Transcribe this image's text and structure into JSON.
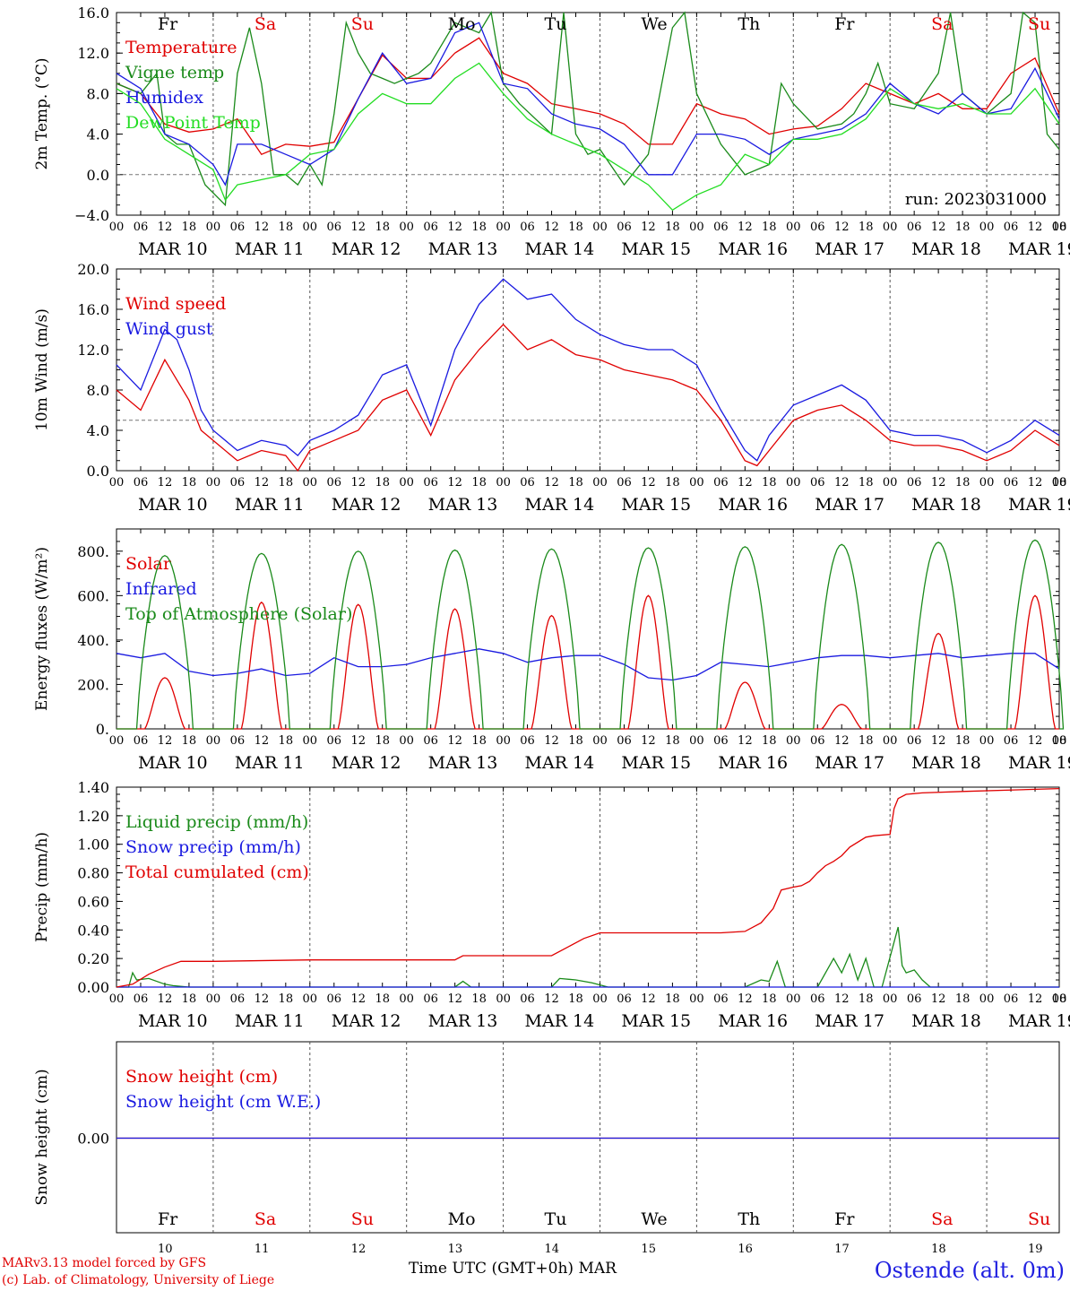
{
  "chart_data": [
    {
      "type": "line",
      "ylabel": "2m Temp. (°C)",
      "ylim": [
        -4,
        16
      ],
      "yticks": [
        "−4.0",
        "0.0",
        "4.0",
        "8.0",
        "12.0",
        "16.0"
      ],
      "reference_line": 0,
      "run_label": "run: 2023031000",
      "series": [
        {
          "name": "Temperature",
          "color": "#e00000",
          "x": [
            0,
            6,
            12,
            18,
            24,
            30,
            36,
            42,
            48,
            54,
            60,
            66,
            72,
            78,
            84,
            90,
            96,
            102,
            108,
            114,
            120,
            126,
            132,
            138,
            144,
            150,
            156,
            162,
            168,
            174,
            180,
            186,
            192,
            198,
            204,
            210,
            216,
            222,
            228,
            234
          ],
          "y": [
            9.0,
            8.0,
            5.0,
            4.2,
            4.5,
            5.5,
            2.0,
            3.0,
            2.8,
            3.2,
            7.5,
            11.8,
            9.5,
            9.5,
            12.0,
            13.5,
            10.0,
            9.0,
            7.0,
            6.5,
            6.0,
            5.0,
            3.0,
            3.0,
            7.0,
            6.0,
            5.5,
            4.0,
            4.5,
            4.8,
            6.5,
            9.0,
            8.0,
            7.0,
            8.0,
            6.5,
            6.5,
            10.0,
            11.5,
            6.0
          ]
        },
        {
          "name": "Vigne temp",
          "color": "#1a8a1a",
          "x": [
            0,
            6,
            10,
            12,
            15,
            18,
            22,
            27,
            30,
            33,
            36,
            39,
            42,
            45,
            48,
            51,
            54,
            57,
            60,
            63,
            66,
            69,
            72,
            75,
            78,
            84,
            90,
            93,
            96,
            100,
            108,
            111,
            114,
            117,
            120,
            126,
            132,
            138,
            141,
            144,
            150,
            156,
            162,
            165,
            168,
            174,
            180,
            183,
            186,
            189,
            192,
            198,
            204,
            207,
            210,
            216,
            222,
            225,
            228,
            231,
            234
          ],
          "y": [
            9,
            8,
            10,
            4,
            3,
            3,
            -1,
            -3,
            10,
            14.5,
            9,
            0,
            0,
            -1,
            1,
            -1,
            6,
            15,
            12,
            10,
            9.5,
            9,
            9.5,
            10,
            11,
            15,
            14,
            16,
            9,
            7,
            4,
            16,
            4,
            2,
            2.5,
            -1,
            2,
            14.5,
            16,
            8,
            3,
            0,
            1,
            9,
            7,
            4.5,
            5,
            6,
            8,
            11,
            7,
            6.5,
            10,
            16,
            8,
            6,
            8,
            16,
            15,
            4,
            2.5
          ]
        },
        {
          "name": "Humidex",
          "color": "#1a1ae0",
          "x": [
            0,
            6,
            12,
            18,
            24,
            27,
            30,
            36,
            42,
            48,
            54,
            60,
            66,
            72,
            78,
            84,
            90,
            96,
            102,
            108,
            114,
            120,
            126,
            132,
            138,
            144,
            150,
            156,
            162,
            168,
            174,
            180,
            186,
            192,
            198,
            204,
            210,
            216,
            222,
            228,
            234
          ],
          "y": [
            10,
            8.5,
            4,
            3,
            1,
            -1,
            3,
            3,
            2,
            1,
            2.5,
            7.5,
            12,
            9,
            9.5,
            14,
            15,
            9,
            8.5,
            6,
            5,
            4.5,
            3,
            0,
            0,
            4,
            4,
            3.5,
            2,
            3.5,
            4,
            4.5,
            6,
            9,
            7,
            6,
            8,
            6,
            6.5,
            10.5,
            5.5
          ]
        },
        {
          "name": "DewPoint Temp",
          "color": "#22dd22",
          "x": [
            0,
            6,
            12,
            18,
            24,
            27,
            30,
            36,
            42,
            48,
            54,
            60,
            66,
            72,
            78,
            84,
            90,
            96,
            102,
            108,
            114,
            120,
            126,
            132,
            138,
            144,
            150,
            156,
            162,
            168,
            174,
            180,
            186,
            192,
            198,
            204,
            210,
            216,
            222,
            228,
            234
          ],
          "y": [
            8.5,
            7,
            3.5,
            2,
            0.5,
            -2.5,
            -1,
            -0.5,
            0,
            2,
            2.5,
            6,
            8,
            7,
            7,
            9.5,
            11,
            8,
            5.5,
            4,
            3,
            2,
            0.5,
            -1,
            -3.5,
            -2,
            -1,
            2,
            1,
            3.5,
            3.5,
            4,
            5.5,
            8.5,
            7,
            6.5,
            7,
            6,
            6,
            8.5,
            5
          ]
        }
      ]
    },
    {
      "type": "line",
      "ylabel": "10m Wind (m/s)",
      "ylim": [
        0,
        20
      ],
      "yticks": [
        "0.0",
        "4.0",
        "8.0",
        "12.0",
        "16.0",
        "20.0"
      ],
      "reference_line": 5,
      "series": [
        {
          "name": "Wind speed",
          "color": "#e00000",
          "x": [
            0,
            6,
            12,
            15,
            18,
            21,
            24,
            30,
            36,
            42,
            45,
            48,
            54,
            60,
            66,
            72,
            78,
            84,
            90,
            96,
            102,
            108,
            114,
            120,
            126,
            132,
            138,
            144,
            150,
            156,
            159,
            162,
            168,
            174,
            180,
            186,
            192,
            198,
            204,
            210,
            216,
            222,
            228,
            234
          ],
          "y": [
            8,
            6,
            11,
            9,
            7,
            4,
            3,
            1,
            2,
            1.5,
            0,
            2,
            3,
            4,
            7,
            8,
            3.5,
            9,
            12,
            14.5,
            12,
            13,
            11.5,
            11,
            10,
            9.5,
            9,
            8,
            5,
            1,
            0.5,
            2,
            5,
            6,
            6.5,
            5,
            3,
            2.5,
            2.5,
            2,
            1,
            2,
            4,
            2.5
          ]
        },
        {
          "name": "Wind gust",
          "color": "#1a1ae0",
          "x": [
            0,
            6,
            12,
            15,
            18,
            21,
            24,
            30,
            36,
            42,
            45,
            48,
            54,
            60,
            66,
            72,
            78,
            84,
            90,
            96,
            102,
            108,
            114,
            120,
            126,
            132,
            138,
            144,
            150,
            156,
            159,
            162,
            168,
            174,
            180,
            186,
            192,
            198,
            204,
            210,
            216,
            222,
            228,
            234
          ],
          "y": [
            10.5,
            8,
            14,
            13,
            10,
            6,
            4,
            2,
            3,
            2.5,
            1.5,
            3,
            4,
            5.5,
            9.5,
            10.5,
            4.5,
            12,
            16.5,
            19,
            17,
            17.5,
            15,
            13.5,
            12.5,
            12,
            12,
            10.5,
            6,
            2,
            1,
            3.5,
            6.5,
            7.5,
            8.5,
            7,
            4,
            3.5,
            3.5,
            3,
            1.8,
            3,
            5,
            3.5
          ]
        }
      ]
    },
    {
      "type": "line",
      "ylabel": "Energy fluxes (W/m²)",
      "ylim": [
        0,
        900
      ],
      "yticks": [
        "0.",
        "200.",
        "400.",
        "600.",
        "800."
      ],
      "series": [
        {
          "name": "Solar",
          "color": "#e00000",
          "peaks": [
            [
              12,
              230
            ],
            [
              36,
              570
            ],
            [
              60,
              560
            ],
            [
              84,
              540
            ],
            [
              108,
              510
            ],
            [
              132,
              600
            ],
            [
              156,
              210
            ],
            [
              180,
              110
            ],
            [
              204,
              430
            ],
            [
              228,
              600
            ]
          ]
        },
        {
          "name": "Infrared",
          "color": "#1a1ae0",
          "x": [
            0,
            6,
            12,
            18,
            24,
            30,
            36,
            42,
            48,
            54,
            60,
            66,
            72,
            78,
            84,
            90,
            96,
            102,
            108,
            114,
            120,
            126,
            132,
            138,
            144,
            150,
            156,
            162,
            168,
            174,
            180,
            186,
            192,
            198,
            204,
            210,
            216,
            222,
            228,
            234
          ],
          "y": [
            340,
            320,
            340,
            260,
            240,
            250,
            270,
            240,
            250,
            320,
            280,
            280,
            290,
            320,
            340,
            360,
            340,
            300,
            320,
            330,
            330,
            290,
            230,
            220,
            240,
            300,
            290,
            280,
            300,
            320,
            330,
            330,
            320,
            330,
            340,
            320,
            330,
            340,
            340,
            270
          ]
        },
        {
          "name": "Top of Atmosphere (Solar)",
          "color": "#1a8a1a",
          "peaks": [
            [
              12,
              780
            ],
            [
              36,
              790
            ],
            [
              60,
              800
            ],
            [
              84,
              805
            ],
            [
              108,
              810
            ],
            [
              132,
              815
            ],
            [
              156,
              820
            ],
            [
              180,
              830
            ],
            [
              204,
              840
            ],
            [
              228,
              850
            ]
          ]
        }
      ]
    },
    {
      "type": "line",
      "ylabel": "Precip (mm/h)",
      "ylim": [
        0,
        1.4
      ],
      "yticks": [
        "0.00",
        "0.20",
        "0.40",
        "0.60",
        "0.80",
        "1.00",
        "1.20",
        "1.40"
      ],
      "series": [
        {
          "name": "Liquid precip (mm/h)",
          "color": "#1a8a1a",
          "x": [
            0,
            3,
            4,
            5,
            8,
            12,
            14,
            18,
            84,
            86,
            88,
            108,
            110,
            114,
            118,
            122,
            156,
            160,
            162,
            164,
            166,
            174,
            178,
            180,
            182,
            184,
            186,
            188,
            190,
            194,
            195,
            196,
            198,
            200,
            202,
            234
          ],
          "y": [
            0,
            0,
            0.1,
            0.05,
            0.06,
            0.02,
            0.01,
            0,
            0,
            0.04,
            0,
            0,
            0.06,
            0.05,
            0.03,
            0,
            0,
            0.05,
            0.04,
            0.18,
            0,
            0,
            0.2,
            0.1,
            0.23,
            0.05,
            0.2,
            0,
            0,
            0.42,
            0.15,
            0.1,
            0.12,
            0.05,
            0,
            0
          ]
        },
        {
          "name": "Snow precip (mm/h)",
          "color": "#1a1ae0",
          "x": [
            0,
            234
          ],
          "y": [
            0,
            0
          ]
        },
        {
          "name": "Total cumulated (cm)",
          "color": "#e00000",
          "x": [
            0,
            4,
            8,
            12,
            16,
            24,
            48,
            72,
            84,
            86,
            108,
            112,
            116,
            120,
            150,
            156,
            160,
            163,
            165,
            168,
            170,
            172,
            174,
            176,
            178,
            180,
            182,
            186,
            188,
            192,
            193,
            194,
            196,
            200,
            210,
            234
          ],
          "y": [
            0,
            0.02,
            0.09,
            0.14,
            0.18,
            0.18,
            0.19,
            0.19,
            0.19,
            0.22,
            0.22,
            0.28,
            0.34,
            0.38,
            0.38,
            0.39,
            0.45,
            0.55,
            0.68,
            0.7,
            0.71,
            0.74,
            0.8,
            0.85,
            0.88,
            0.92,
            0.98,
            1.05,
            1.06,
            1.07,
            1.25,
            1.32,
            1.35,
            1.36,
            1.37,
            1.39
          ]
        }
      ]
    },
    {
      "type": "line",
      "ylabel": "Snow height (cm)",
      "yticks": [
        "0.00"
      ],
      "series": [
        {
          "name": "Snow height (cm)",
          "color": "#e00000",
          "x": [
            0,
            234
          ],
          "y": [
            0,
            0
          ]
        },
        {
          "name": "Snow height (cm W.E.)",
          "color": "#1a1ae0",
          "x": [
            0,
            234
          ],
          "y": [
            0,
            0
          ]
        }
      ]
    }
  ],
  "axis": {
    "hour_ticks": [
      "00",
      "06",
      "12",
      "18"
    ],
    "end_tick": "00",
    "dates": [
      "MAR 10",
      "MAR 11",
      "MAR 12",
      "MAR 13",
      "MAR 14",
      "MAR 15",
      "MAR 16",
      "MAR 17",
      "MAR 18",
      "MAR 19"
    ],
    "days": [
      {
        "label": "Fr",
        "weekend": false
      },
      {
        "label": "Sa",
        "weekend": true
      },
      {
        "label": "Su",
        "weekend": true
      },
      {
        "label": "Mo",
        "weekend": false
      },
      {
        "label": "Tu",
        "weekend": false
      },
      {
        "label": "We",
        "weekend": false
      },
      {
        "label": "Th",
        "weekend": false
      },
      {
        "label": "Fr",
        "weekend": false
      },
      {
        "label": "Sa",
        "weekend": true
      },
      {
        "label": "Su",
        "weekend": true
      }
    ],
    "day_numbers": [
      "10",
      "11",
      "12",
      "13",
      "14",
      "15",
      "16",
      "17",
      "18",
      "19"
    ],
    "xlabel": "Time UTC (GMT+0h) MAR"
  },
  "footer": {
    "model_line1": "MARv3.13 model forced by GFS",
    "model_line2": "(c) Lab. of Climatology, University of Liege",
    "station": "Ostende (alt. 0m)"
  },
  "colors": {
    "weekday": "#000000",
    "weekend": "#e00000"
  }
}
